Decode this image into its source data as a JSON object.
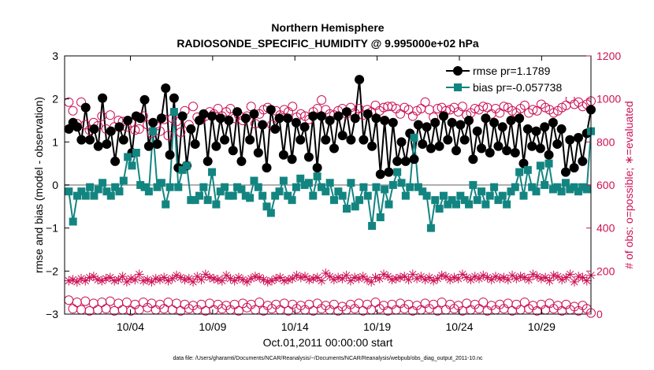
{
  "chart_data": {
    "type": "line",
    "title_line1": "Northern Hemisphere",
    "title_line2": "RADIOSONDE_SPECIFIC_HUMIDITY @ 9.995000e+02 hPa",
    "xlabel": "Oct.01,2011 00:00:00 start",
    "ylabel_left": "rmse and bias (model - observation)",
    "ylabel_right": "# of obs: o=possible; ∗=evaluated",
    "footnote": "data file: /Users/gharamti/Documents/NCAR/Reanalysis/~/Documents/NCAR/Reanalysis/webpub/obs_diag_output_2011-10.nc",
    "xlim": [
      0,
      32
    ],
    "ylim_left": [
      -3,
      3
    ],
    "ylim_right": [
      0,
      1200
    ],
    "x_tick_values": [
      4,
      9,
      14,
      19,
      24,
      29
    ],
    "x_tick_labels": [
      "10/04",
      "10/09",
      "10/14",
      "10/19",
      "10/24",
      "10/29"
    ],
    "y_left_ticks": [
      -3,
      -2,
      -1,
      0,
      1,
      2,
      3
    ],
    "y_left_tick_labels": [
      "−3",
      "−2",
      "−1",
      "0",
      "1",
      "2",
      "3"
    ],
    "y_right_ticks": [
      0,
      200,
      400,
      600,
      800,
      1000,
      1200
    ],
    "y_right_tick_labels": [
      "0",
      "200",
      "400",
      "600",
      "800",
      "1000",
      "1200"
    ],
    "zero_line": 0,
    "colors": {
      "rmse": "#000000",
      "bias": "#138581",
      "obs": "#cc1155",
      "zero_line": "#b0b0b0",
      "axis": "#000000"
    },
    "legend": [
      {
        "name": "rmse pr=1.1789",
        "marker": "filled-circle",
        "color": "#000000"
      },
      {
        "name": "bias pr=-0.057738",
        "marker": "filled-square",
        "color": "#138581"
      }
    ],
    "legend_position": "top-right",
    "series": [
      {
        "name": "rmse",
        "axis": "left",
        "values": [
          1.3,
          1.45,
          1.35,
          1.05,
          1.8,
          1.05,
          1.3,
          0.9,
          2.02,
          0.95,
          1.25,
          0.55,
          1.35,
          1.05,
          1.5,
          0.75,
          1.6,
          1.55,
          1.98,
          0.9,
          1.45,
          0.95,
          1.55,
          2.25,
          0.7,
          2.02,
          0.4,
          1.6,
          0.45,
          1.3,
          0.95,
          1.5,
          1.65,
          0.55,
          1.6,
          0.9,
          1.55,
          1.05,
          1.5,
          0.8,
          1.7,
          0.55,
          1.55,
          1.05,
          1.65,
          0.75,
          1.4,
          0.4,
          1.75,
          1.3,
          1.55,
          0.7,
          1.55,
          0.6,
          1.45,
          1.05,
          1.35,
          0.65,
          1.6,
          0.4,
          1.6,
          1.05,
          1.5,
          0.85,
          1.6,
          1.15,
          1.7,
          1.05,
          1.55,
          2.45,
          1.05,
          1.65,
          0.9,
          1.55,
          0.25,
          1.5,
          0.3,
          1.45,
          0.55,
          1.0,
          0.55,
          1.2,
          0.6,
          1.4,
          0.95,
          1.35,
          0.85,
          1.45,
          0.9,
          1.6,
          1.05,
          1.45,
          0.8,
          1.4,
          1.05,
          1.5,
          0.6,
          1.25,
          0.85,
          1.55,
          0.75,
          1.45,
          0.9,
          1.35,
          0.8,
          1.5,
          0.75,
          1.55,
          0.5,
          1.3,
          0.9,
          1.25,
          0.85,
          1.35,
          0.7,
          1.45,
          0.95,
          1.3,
          0.3,
          1.05,
          0.4,
          1.1,
          0.55,
          1.2,
          1.75
        ]
      },
      {
        "name": "bias",
        "axis": "left",
        "values": [
          -0.15,
          -0.85,
          -0.25,
          -0.15,
          -0.25,
          -0.05,
          -0.25,
          -0.1,
          0.05,
          -0.15,
          -0.25,
          -0.05,
          -0.15,
          0.1,
          0.65,
          0.45,
          0.75,
          0.0,
          -0.05,
          -0.15,
          1.25,
          -0.05,
          0.05,
          -0.45,
          -0.05,
          1.7,
          -0.05,
          0.35,
          0.45,
          -0.35,
          -0.35,
          -0.25,
          -0.05,
          -0.35,
          0.3,
          -0.45,
          -0.15,
          -0.05,
          -0.25,
          -0.25,
          -0.05,
          -0.1,
          -0.25,
          -0.3,
          0.1,
          -0.05,
          -0.25,
          -0.5,
          -0.65,
          -0.25,
          -0.15,
          0.1,
          -0.25,
          -0.35,
          -0.05,
          0.15,
          0.0,
          0.05,
          -0.25,
          0.2,
          -0.05,
          -0.15,
          0.05,
          -0.35,
          -0.15,
          -0.25,
          -0.55,
          0.05,
          -0.5,
          -0.35,
          -0.05,
          -0.25,
          -0.95,
          -0.05,
          -0.75,
          -0.1,
          -0.45,
          0.0,
          0.3,
          0.05,
          -0.25,
          -0.05,
          1.1,
          -0.05,
          -0.15,
          -0.25,
          -1.0,
          -0.35,
          -0.55,
          -0.25,
          -0.45,
          -0.35,
          -0.45,
          -0.25,
          -0.35,
          -0.45,
          0.0,
          -0.35,
          -0.15,
          -0.45,
          -0.25,
          -0.05,
          -0.35,
          -0.25,
          -0.45,
          -0.15,
          -0.05,
          0.3,
          -0.25,
          0.35,
          -0.05,
          -0.15,
          0.45,
          0.0,
          0.5,
          -0.1,
          -0.05,
          -0.15,
          0.05,
          -0.1,
          -0.05,
          -0.15,
          -0.05,
          -0.1,
          1.25
        ]
      },
      {
        "name": "possible (upper)",
        "axis": "right",
        "marker": "open-circle",
        "values": [
          985,
          945,
          885,
          985,
          880,
          855,
          890,
          875,
          920,
          860,
          925,
          870,
          900,
          895,
          870,
          890,
          855,
          860,
          920,
          880,
          840,
          875,
          850,
          905,
          830,
          910,
          895,
          845,
          945,
          880,
          965,
          915,
          905,
          920,
          940,
          930,
          955,
          920,
          940,
          955,
          910,
          925,
          900,
          920,
          965,
          885,
          930,
          950,
          960,
          880,
          945,
          925,
          950,
          940,
          965,
          915,
          930,
          920,
          905,
          940,
          955,
          995,
          950,
          930,
          925,
          945,
          955,
          930,
          960,
          935,
          955,
          925,
          950,
          940,
          970,
          945,
          960,
          965,
          965,
          955,
          930,
          960,
          950,
          920,
          945,
          955,
          985,
          950,
          915,
          955,
          960,
          945,
          950,
          960,
          940,
          965,
          925,
          935,
          955,
          950,
          965,
          960,
          930,
          955,
          935,
          965,
          960,
          945,
          935,
          955,
          970,
          935,
          950,
          945,
          975,
          960,
          950,
          935,
          945,
          960,
          970,
          1000,
          975,
          985,
          965,
          975,
          990
        ]
      },
      {
        "name": "evaluated",
        "axis": "right",
        "marker": "asterisk",
        "values": [
          155,
          160,
          150,
          165,
          155,
          170,
          175,
          160,
          155,
          165,
          170,
          155,
          160,
          175,
          150,
          165,
          160,
          185,
          155,
          160,
          150,
          165,
          160,
          170,
          155,
          165,
          180,
          170,
          160,
          165,
          150,
          175,
          160,
          185,
          170,
          165,
          160,
          155,
          180,
          165,
          155,
          170,
          160,
          150,
          165,
          175,
          170,
          160,
          150,
          155,
          165,
          170,
          155,
          160,
          165,
          180,
          170,
          175,
          160,
          165,
          170,
          155,
          190,
          175,
          160,
          170,
          165,
          180,
          155,
          170,
          165,
          175,
          160,
          150,
          170,
          165,
          185,
          175,
          160,
          165,
          170,
          175,
          160,
          185,
          165,
          175,
          160,
          170,
          155,
          165,
          180,
          175,
          160,
          170,
          165,
          185,
          170,
          160,
          175,
          165,
          180,
          170,
          160,
          175,
          165,
          170,
          160,
          180,
          165,
          175,
          170,
          160,
          185,
          175,
          165,
          170,
          155,
          180,
          175,
          160,
          170,
          185,
          150,
          175,
          170,
          155,
          180
        ]
      },
      {
        "name": "possible (lower)",
        "axis": "right",
        "marker": "open-circle",
        "values": [
          65,
          25,
          55,
          20,
          60,
          15,
          50,
          20,
          55,
          25,
          60,
          15,
          50,
          20,
          55,
          15,
          45,
          20,
          55,
          30,
          50,
          20,
          45,
          25,
          55,
          20,
          50,
          15,
          45,
          25,
          40,
          20,
          45,
          15,
          50,
          20,
          45,
          25,
          40,
          20,
          45,
          15,
          50,
          30,
          45,
          20,
          55,
          15,
          40,
          25,
          45,
          20,
          50,
          15,
          45,
          25,
          40,
          20,
          45,
          15,
          50,
          25,
          40,
          20,
          45,
          15,
          35,
          20,
          45,
          25,
          50,
          15,
          45,
          20,
          55,
          25,
          40,
          15,
          45,
          20,
          50,
          25,
          45,
          15,
          40,
          20,
          50,
          25,
          45,
          15,
          55,
          20,
          45,
          25,
          40,
          15,
          50,
          20,
          45,
          25,
          55,
          15,
          40,
          20,
          45,
          25,
          50,
          15,
          45,
          20,
          55,
          25,
          40,
          15,
          45,
          20,
          50,
          25,
          40,
          15,
          45,
          20,
          35,
          15,
          40,
          25,
          5
        ]
      }
    ]
  }
}
